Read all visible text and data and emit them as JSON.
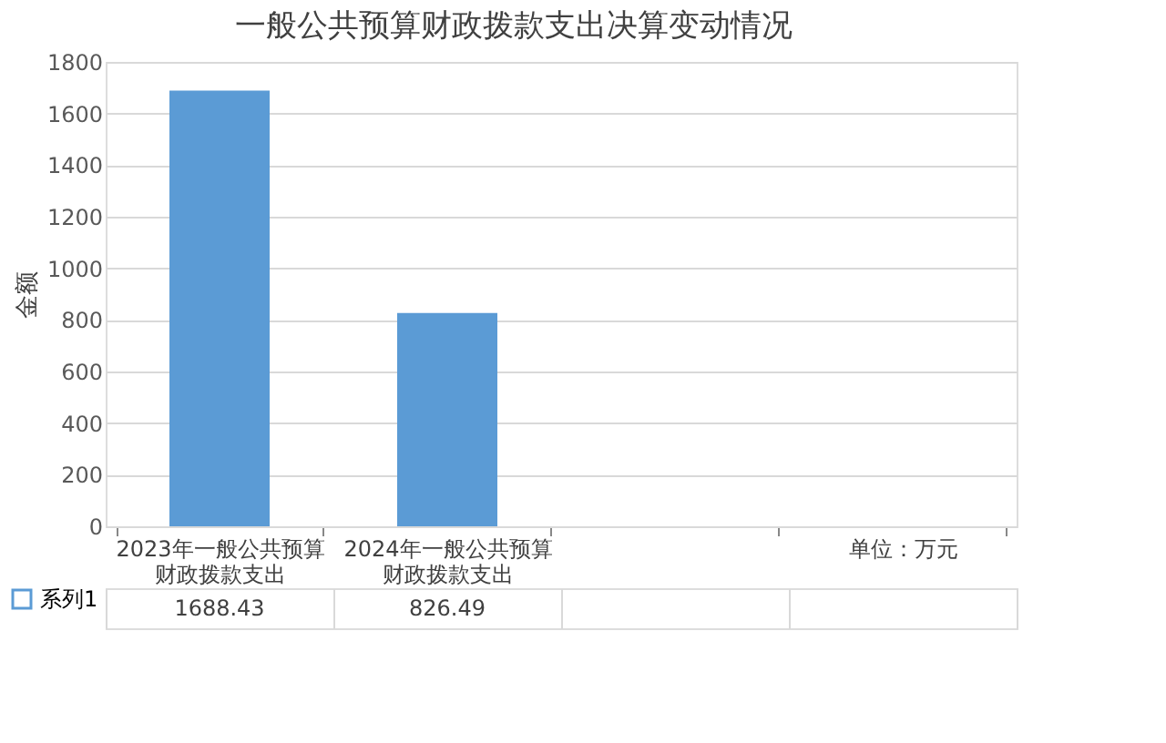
{
  "chart_data": {
    "type": "bar",
    "title": "一般公共预算财政拨款支出决算变动情况",
    "ylabel": "金额",
    "categories": [
      "2023年一般公共预算财政拨款支出",
      "2024年一般公共预算财政拨款支出",
      null,
      "单位：万元"
    ],
    "series": [
      {
        "name": "系列1",
        "color": "#5b9bd5",
        "values": [
          1688.43,
          826.49,
          null,
          null
        ]
      }
    ],
    "ylim": [
      0,
      1800
    ],
    "yticks": [
      0,
      200,
      400,
      600,
      800,
      1000,
      1200,
      1400,
      1600,
      1800
    ],
    "grid": "y",
    "legend": "bottom left",
    "data_labels": true
  }
}
